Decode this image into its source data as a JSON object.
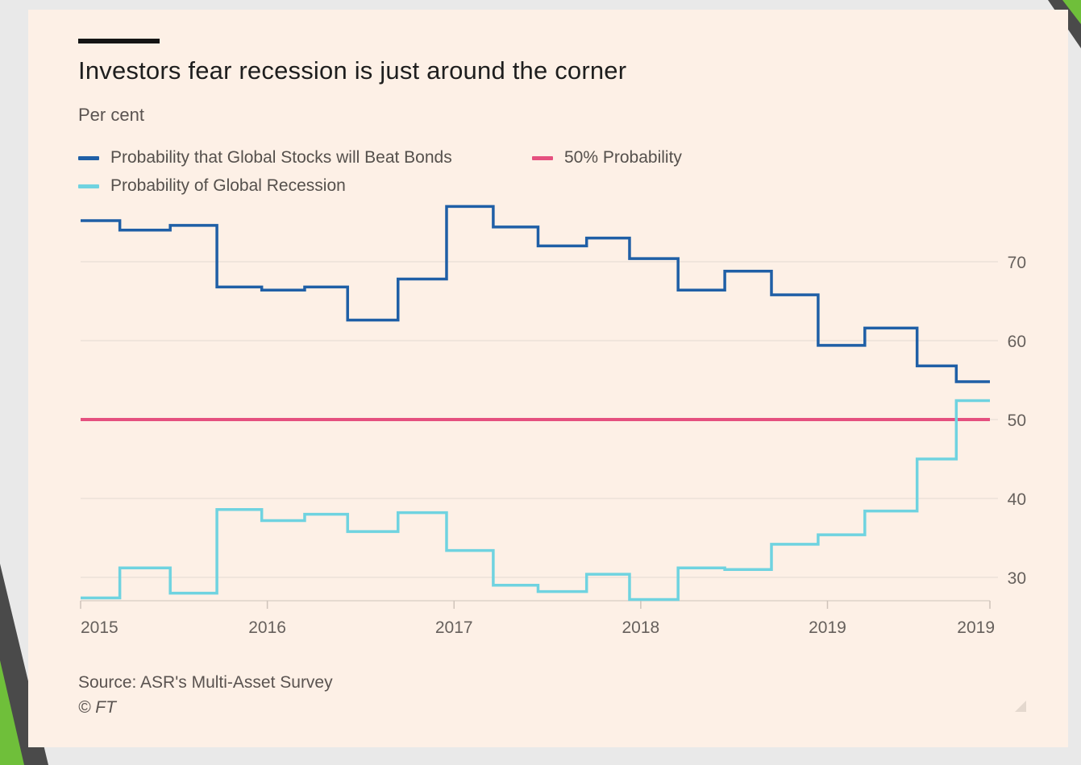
{
  "title": "Investors fear recession is just around the corner",
  "subtitle": "Per cent",
  "source": "Source: ASR's Multi-Asset Survey",
  "credit": "© FT",
  "colors": {
    "stocks": "#1f5fa6",
    "recession": "#6fd3e0",
    "threshold": "#e5507f",
    "background": "#fdf0e6",
    "grid": "#ece1d8",
    "tick_text": "#66605c"
  },
  "legend": [
    {
      "label": "Probability that Global Stocks will Beat Bonds",
      "color": "#1f5fa6"
    },
    {
      "label": "50% Probability",
      "color": "#e5507f"
    },
    {
      "label": "Probability of Global Recession",
      "color": "#6fd3e0"
    }
  ],
  "chart_data": {
    "type": "line",
    "line_shape": "step",
    "xlabel": "",
    "ylabel": "Per cent",
    "ylim": [
      26,
      80
    ],
    "yticks": [
      30,
      40,
      50,
      60,
      70
    ],
    "grid": true,
    "legend_position": "top-left",
    "y_axis_position": "right",
    "x_ticks": [
      {
        "x": 2015.0,
        "label": "2015"
      },
      {
        "x": 2016.0,
        "label": "2016"
      },
      {
        "x": 2017.0,
        "label": "2017"
      },
      {
        "x": 2018.0,
        "label": "2018"
      },
      {
        "x": 2019.0,
        "label": "2019"
      },
      {
        "x": 2019.87,
        "label": "2019"
      }
    ],
    "xlim": [
      2015.0,
      2019.87
    ],
    "series": [
      {
        "name": "Probability that Global Stocks will Beat Bonds",
        "color": "#1f5fa6",
        "x": [
          2015.0,
          2015.21,
          2015.48,
          2015.73,
          2015.97,
          2016.2,
          2016.43,
          2016.7,
          2016.96,
          2017.21,
          2017.45,
          2017.71,
          2017.94,
          2018.2,
          2018.45,
          2018.7,
          2018.95,
          2019.2,
          2019.48,
          2019.69,
          2019.87
        ],
        "values": [
          75.2,
          74.0,
          74.6,
          66.8,
          66.4,
          66.8,
          62.6,
          67.8,
          77.0,
          74.4,
          72.0,
          73.0,
          70.4,
          66.4,
          68.8,
          65.8,
          59.4,
          61.6,
          56.8,
          54.8,
          54.8
        ]
      },
      {
        "name": "Probability of Global Recession",
        "color": "#6fd3e0",
        "x": [
          2015.0,
          2015.21,
          2015.48,
          2015.73,
          2015.97,
          2016.2,
          2016.43,
          2016.7,
          2016.96,
          2017.21,
          2017.45,
          2017.71,
          2017.94,
          2018.2,
          2018.45,
          2018.7,
          2018.95,
          2019.2,
          2019.48,
          2019.69,
          2019.87
        ],
        "values": [
          27.4,
          31.2,
          28.0,
          38.6,
          37.2,
          38.0,
          35.8,
          38.2,
          33.4,
          29.0,
          28.2,
          30.4,
          27.2,
          31.2,
          31.0,
          34.2,
          35.4,
          38.4,
          45.0,
          52.4,
          52.4
        ]
      },
      {
        "name": "50% Probability",
        "color": "#e5507f",
        "x": [
          2015.0,
          2019.87
        ],
        "values": [
          50,
          50
        ]
      }
    ]
  }
}
